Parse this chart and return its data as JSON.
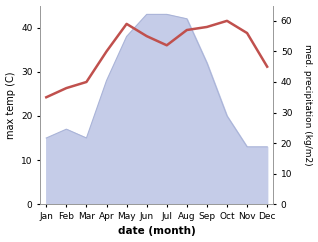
{
  "months": [
    "Jan",
    "Feb",
    "Mar",
    "Apr",
    "May",
    "Jun",
    "Jul",
    "Aug",
    "Sep",
    "Oct",
    "Nov",
    "Dec"
  ],
  "max_temp": [
    15,
    17,
    15,
    28,
    38,
    43,
    43,
    42,
    32,
    20,
    13,
    13
  ],
  "precipitation": [
    35,
    38,
    40,
    50,
    59,
    55,
    52,
    57,
    58,
    60,
    56,
    45
  ],
  "temp_color": "#c0504d",
  "precip_fill_color": "#c5cce8",
  "precip_fill_edge": "#aab4d8",
  "temp_ylim": [
    0,
    45
  ],
  "precip_ylim": [
    0,
    65
  ],
  "temp_yticks": [
    0,
    10,
    20,
    30,
    40
  ],
  "precip_yticks": [
    0,
    10,
    20,
    30,
    40,
    50,
    60
  ],
  "ylabel_left": "max temp (C)",
  "ylabel_right": "med. precipitation (kg/m2)",
  "xlabel": "date (month)",
  "bg_color": "#ffffff",
  "spine_color": "#999999"
}
